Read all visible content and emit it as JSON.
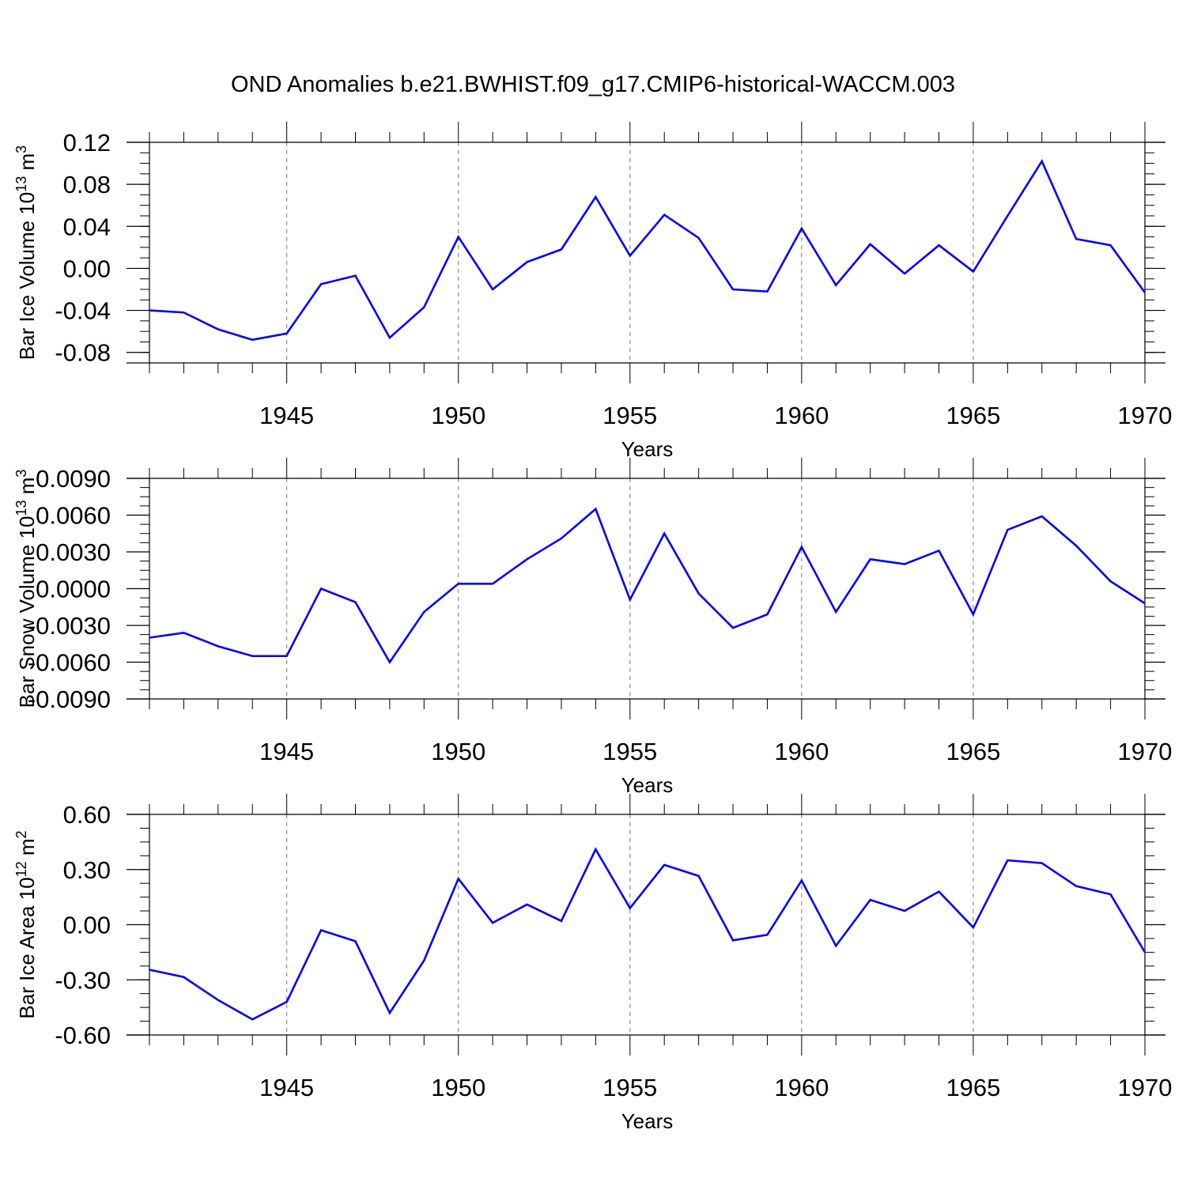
{
  "title": "OND Anomalies b.e21.BWHIST.f09_g17.CMIP6-historical-WACCM.003",
  "chart_data": [
    {
      "type": "line",
      "xlabel": "Years",
      "ylabel": "Bar Ice Volume 10",
      "ylabel_sup": "13",
      "ylabel_unit": " m",
      "ylabel_unit_sup": "3",
      "xlim": [
        1941,
        1970
      ],
      "ylim": [
        -0.09,
        0.12
      ],
      "yticks": [
        "0.12",
        "0.08",
        "0.04",
        "0.00",
        "-0.04",
        "-0.08"
      ],
      "ytick_values": [
        0.12,
        0.08,
        0.04,
        0.0,
        -0.04,
        -0.08
      ],
      "xticks": [
        "1945",
        "1950",
        "1955",
        "1960",
        "1965",
        "1970"
      ],
      "xtick_values": [
        1945,
        1950,
        1955,
        1960,
        1965,
        1970
      ],
      "line_color": "#0000ff",
      "x": [
        1941,
        1942,
        1943,
        1944,
        1945,
        1946,
        1947,
        1948,
        1949,
        1950,
        1951,
        1952,
        1953,
        1954,
        1955,
        1956,
        1957,
        1958,
        1959,
        1960,
        1961,
        1962,
        1963,
        1964,
        1965,
        1966,
        1967,
        1968,
        1969,
        1970
      ],
      "values": [
        -0.04,
        -0.042,
        -0.058,
        -0.068,
        -0.062,
        -0.015,
        -0.007,
        -0.066,
        -0.037,
        0.03,
        -0.02,
        0.006,
        0.018,
        0.068,
        0.012,
        0.051,
        0.029,
        -0.02,
        -0.022,
        0.038,
        -0.016,
        0.023,
        -0.005,
        0.022,
        -0.003,
        0.05,
        0.102,
        0.028,
        0.022,
        -0.023
      ]
    },
    {
      "type": "line",
      "xlabel": "Years",
      "ylabel": "Bar Snow Volume 10",
      "ylabel_sup": "13",
      "ylabel_unit": " m",
      "ylabel_unit_sup": "3",
      "xlim": [
        1941,
        1970
      ],
      "ylim": [
        -0.009,
        0.009
      ],
      "yticks": [
        "0.0090",
        "0.0060",
        "0.0030",
        "0.0000",
        "-0.0030",
        "-0.0060",
        "-0.0090"
      ],
      "ytick_values": [
        0.009,
        0.006,
        0.003,
        0.0,
        -0.003,
        -0.006,
        -0.009
      ],
      "xticks": [
        "1945",
        "1950",
        "1955",
        "1960",
        "1965",
        "1970"
      ],
      "xtick_values": [
        1945,
        1950,
        1955,
        1960,
        1965,
        1970
      ],
      "line_color": "#0000ff",
      "x": [
        1941,
        1942,
        1943,
        1944,
        1945,
        1946,
        1947,
        1948,
        1949,
        1950,
        1951,
        1952,
        1953,
        1954,
        1955,
        1956,
        1957,
        1958,
        1959,
        1960,
        1961,
        1962,
        1963,
        1964,
        1965,
        1966,
        1967,
        1968,
        1969,
        1970
      ],
      "values": [
        -0.004,
        -0.0036,
        -0.0047,
        -0.0055,
        -0.0055,
        0.0,
        -0.0011,
        -0.006,
        -0.0019,
        0.0004,
        0.0004,
        0.0024,
        0.0041,
        0.0065,
        -0.0009,
        0.0045,
        -0.0004,
        -0.0032,
        -0.0021,
        0.0034,
        -0.0019,
        0.0024,
        0.002,
        0.0031,
        -0.0021,
        0.0048,
        0.0059,
        0.0035,
        0.0006,
        -0.0012
      ]
    },
    {
      "type": "line",
      "xlabel": "Years",
      "ylabel": "Bar Ice Area 10",
      "ylabel_sup": "12",
      "ylabel_unit": " m",
      "ylabel_unit_sup": "2",
      "xlim": [
        1941,
        1970
      ],
      "ylim": [
        -0.6,
        0.6
      ],
      "yticks": [
        "0.60",
        "0.30",
        "0.00",
        "-0.30",
        "-0.60"
      ],
      "ytick_values": [
        0.6,
        0.3,
        0.0,
        -0.3,
        -0.6
      ],
      "xticks": [
        "1945",
        "1950",
        "1955",
        "1960",
        "1965",
        "1970"
      ],
      "xtick_values": [
        1945,
        1950,
        1955,
        1960,
        1965,
        1970
      ],
      "line_color": "#0000ff",
      "x": [
        1941,
        1942,
        1943,
        1944,
        1945,
        1946,
        1947,
        1948,
        1949,
        1950,
        1951,
        1952,
        1953,
        1954,
        1955,
        1956,
        1957,
        1958,
        1959,
        1960,
        1961,
        1962,
        1963,
        1964,
        1965,
        1966,
        1967,
        1968,
        1969,
        1970
      ],
      "values": [
        -0.245,
        -0.285,
        -0.41,
        -0.515,
        -0.42,
        -0.03,
        -0.09,
        -0.48,
        -0.195,
        0.25,
        0.01,
        0.11,
        0.02,
        0.41,
        0.09,
        0.325,
        0.265,
        -0.085,
        -0.055,
        0.24,
        -0.115,
        0.135,
        0.075,
        0.18,
        -0.015,
        0.35,
        0.335,
        0.21,
        0.165,
        -0.15
      ]
    }
  ]
}
